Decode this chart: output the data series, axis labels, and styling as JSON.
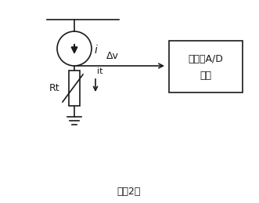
{
  "fig_width": 3.31,
  "fig_height": 2.59,
  "dpi": 100,
  "bg_color": "#ffffff",
  "caption": "图（2）",
  "box_label_line1": "放大、A/D",
  "box_label_line2": "处理",
  "label_i": "i",
  "label_delta_v": "Δv",
  "label_it": "it",
  "label_Rt": "Rt",
  "lw": 1.2
}
